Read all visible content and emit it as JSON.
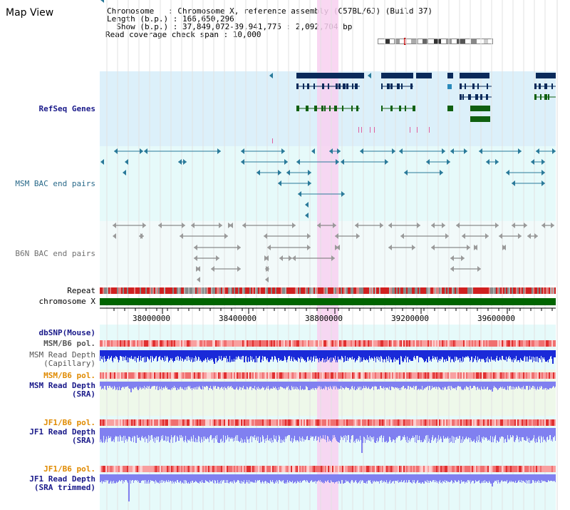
{
  "page": {
    "title": "Map View"
  },
  "info": {
    "line1": "Chromosome   : Chromosome X, reference assembly (C57BL/6J) (Build 37)",
    "line2": "Length (b.p.) : 166,650,296",
    "line3": "  Show (b.p.) : 37,849,072-39,941,775 : 2,092,704 bp",
    "line4": "Read coverage check span : 10,000"
  },
  "tracks": {
    "refseq": "RefSeq Genes",
    "msm_bac": "MSM BAC end pairs",
    "b6n_bac": "B6N BAC end pairs",
    "repeat": "Repeat",
    "chromosome": "chromosome X",
    "dbsnp": "dbSNP(Mouse)",
    "msm_b6_pol1": "MSM/B6 pol.",
    "msm_depth_cap_1": "MSM Read Depth",
    "msm_depth_cap_2": "(Capillary)",
    "msm_b6_pol2": "MSM/B6 pol.",
    "msm_depth_sra_1": "MSM Read Depth",
    "msm_depth_sra_2": "(SRA)",
    "jf1_b6_pol1": "JF1/B6 pol.",
    "jf1_depth_sra_1": "JF1 Read Depth",
    "jf1_depth_sra_2": "(SRA)",
    "jf1_b6_pol2": "JF1/B6 pol.",
    "jf1_depth_trim_1": "JF1 Read Depth",
    "jf1_depth_trim_2": "(SRA trimmed)"
  },
  "axis": {
    "ticks": [
      "38000000",
      "38400000",
      "38800000",
      "39200000",
      "39600000"
    ]
  },
  "colors": {
    "refseq_bg": "#dcf0fa",
    "bac_bg": "#e6fafa",
    "highlight": "#f8d0f0",
    "gene": "#0a2a5a",
    "gene_green": "#106010",
    "bac_line": "#2a7a9a",
    "b6n_line": "#707070",
    "chrom_bar": "#006400",
    "depth_dark": "#1a2ad8",
    "depth_light": "#8080f0",
    "pol_color": "#f07070",
    "label_blue": "#1a1a8a",
    "label_orange": "#e08a00",
    "label_teal": "#2a6a8a"
  }
}
